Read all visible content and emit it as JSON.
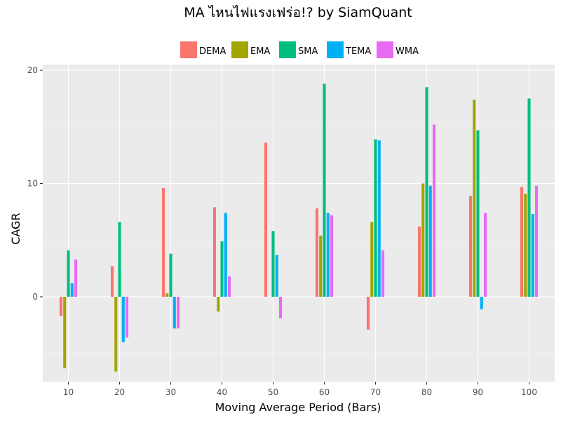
{
  "chart_data": {
    "type": "bar",
    "title": "MA ไหนไฟแรงเฟร่อ!? by SiamQuant",
    "xlabel": "Moving Average Period (Bars)",
    "ylabel": "CAGR",
    "categories": [
      "10",
      "20",
      "30",
      "40",
      "50",
      "60",
      "70",
      "80",
      "90",
      "100"
    ],
    "yticks": [
      0,
      10,
      20
    ],
    "ylim": [
      -7.5,
      20.5
    ],
    "grid": true,
    "legend_position": "top",
    "series": [
      {
        "name": "DEMA",
        "color": "#F8766D",
        "values": [
          -1.7,
          2.7,
          9.6,
          7.9,
          13.6,
          7.8,
          -2.9,
          6.2,
          8.9,
          9.7
        ]
      },
      {
        "name": "EMA",
        "color": "#A3A500",
        "values": [
          -6.3,
          -6.6,
          0.3,
          -1.3,
          0.0,
          5.4,
          6.6,
          10.0,
          17.4,
          9.1
        ]
      },
      {
        "name": "SMA",
        "color": "#00BF7D",
        "values": [
          4.1,
          6.6,
          3.8,
          4.9,
          5.8,
          18.8,
          13.9,
          18.5,
          14.7,
          17.5
        ]
      },
      {
        "name": "TEMA",
        "color": "#00B0F6",
        "values": [
          1.2,
          -4.0,
          -2.8,
          7.4,
          3.7,
          7.4,
          13.8,
          9.8,
          -1.1,
          7.3
        ]
      },
      {
        "name": "WMA",
        "color": "#E76BF3",
        "values": [
          3.3,
          -3.6,
          -2.8,
          1.8,
          -1.9,
          7.2,
          4.1,
          15.2,
          7.4,
          9.8
        ]
      }
    ]
  }
}
